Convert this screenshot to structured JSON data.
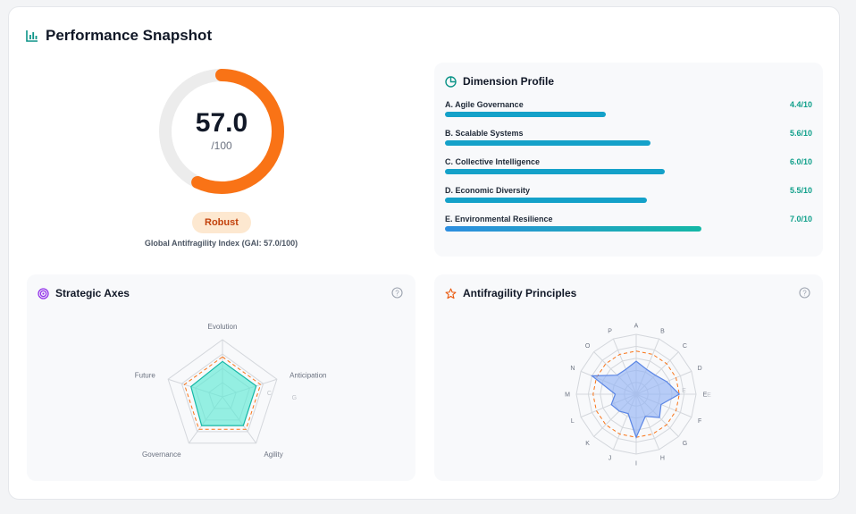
{
  "header": {
    "title": "Performance Snapshot",
    "icon": "bar-chart-icon"
  },
  "score": {
    "value": "57.0",
    "max_label": "/100",
    "fraction": 0.57,
    "badge": "Robust",
    "caption": "Global Antifragility Index (GAI: 57.0/100)",
    "ring_color": "#f97316",
    "track_color": "#e5e7eb"
  },
  "dimensions": {
    "title": "Dimension Profile",
    "icon": "pie-chart-icon",
    "bar_color": "#14a1c9",
    "items": [
      {
        "label": "A. Agile Governance",
        "score": "4.4/10",
        "value": 4.4
      },
      {
        "label": "B. Scalable Systems",
        "score": "5.6/10",
        "value": 5.6
      },
      {
        "label": "C. Collective Intelligence",
        "score": "6.0/10",
        "value": 6.0
      },
      {
        "label": "D. Economic Diversity",
        "score": "5.5/10",
        "value": 5.5
      },
      {
        "label": "E. Environmental Resilience",
        "score": "7.0/10",
        "value": 7.0
      }
    ]
  },
  "strategic_axes": {
    "title": "Strategic Axes",
    "icon": "target-icon",
    "fill_color": "#5eead4",
    "stroke_color": "#14b8a6",
    "axes": [
      "Evolution",
      "Anticipation",
      "Agility",
      "Governance",
      "Future"
    ],
    "values": [
      0.62,
      0.62,
      0.62,
      0.62,
      0.58
    ],
    "threshold": 0.7,
    "tick_labels": [
      "C",
      "G"
    ]
  },
  "principles": {
    "title": "Antifragility Principles",
    "icon": "star-icon",
    "fill_color": "#93b4f5",
    "stroke_color": "#5b86e5",
    "axes": [
      "A",
      "B",
      "C",
      "D",
      "E",
      "F",
      "G",
      "H",
      "I",
      "J",
      "K",
      "L",
      "M",
      "N",
      "O",
      "P"
    ],
    "values": [
      0.55,
      0.45,
      0.45,
      0.55,
      0.72,
      0.45,
      0.55,
      0.4,
      0.72,
      0.35,
      0.4,
      0.45,
      0.35,
      0.8,
      0.45,
      0.45
    ],
    "threshold": 0.72,
    "tick_labels": [
      "E",
      "E"
    ]
  }
}
